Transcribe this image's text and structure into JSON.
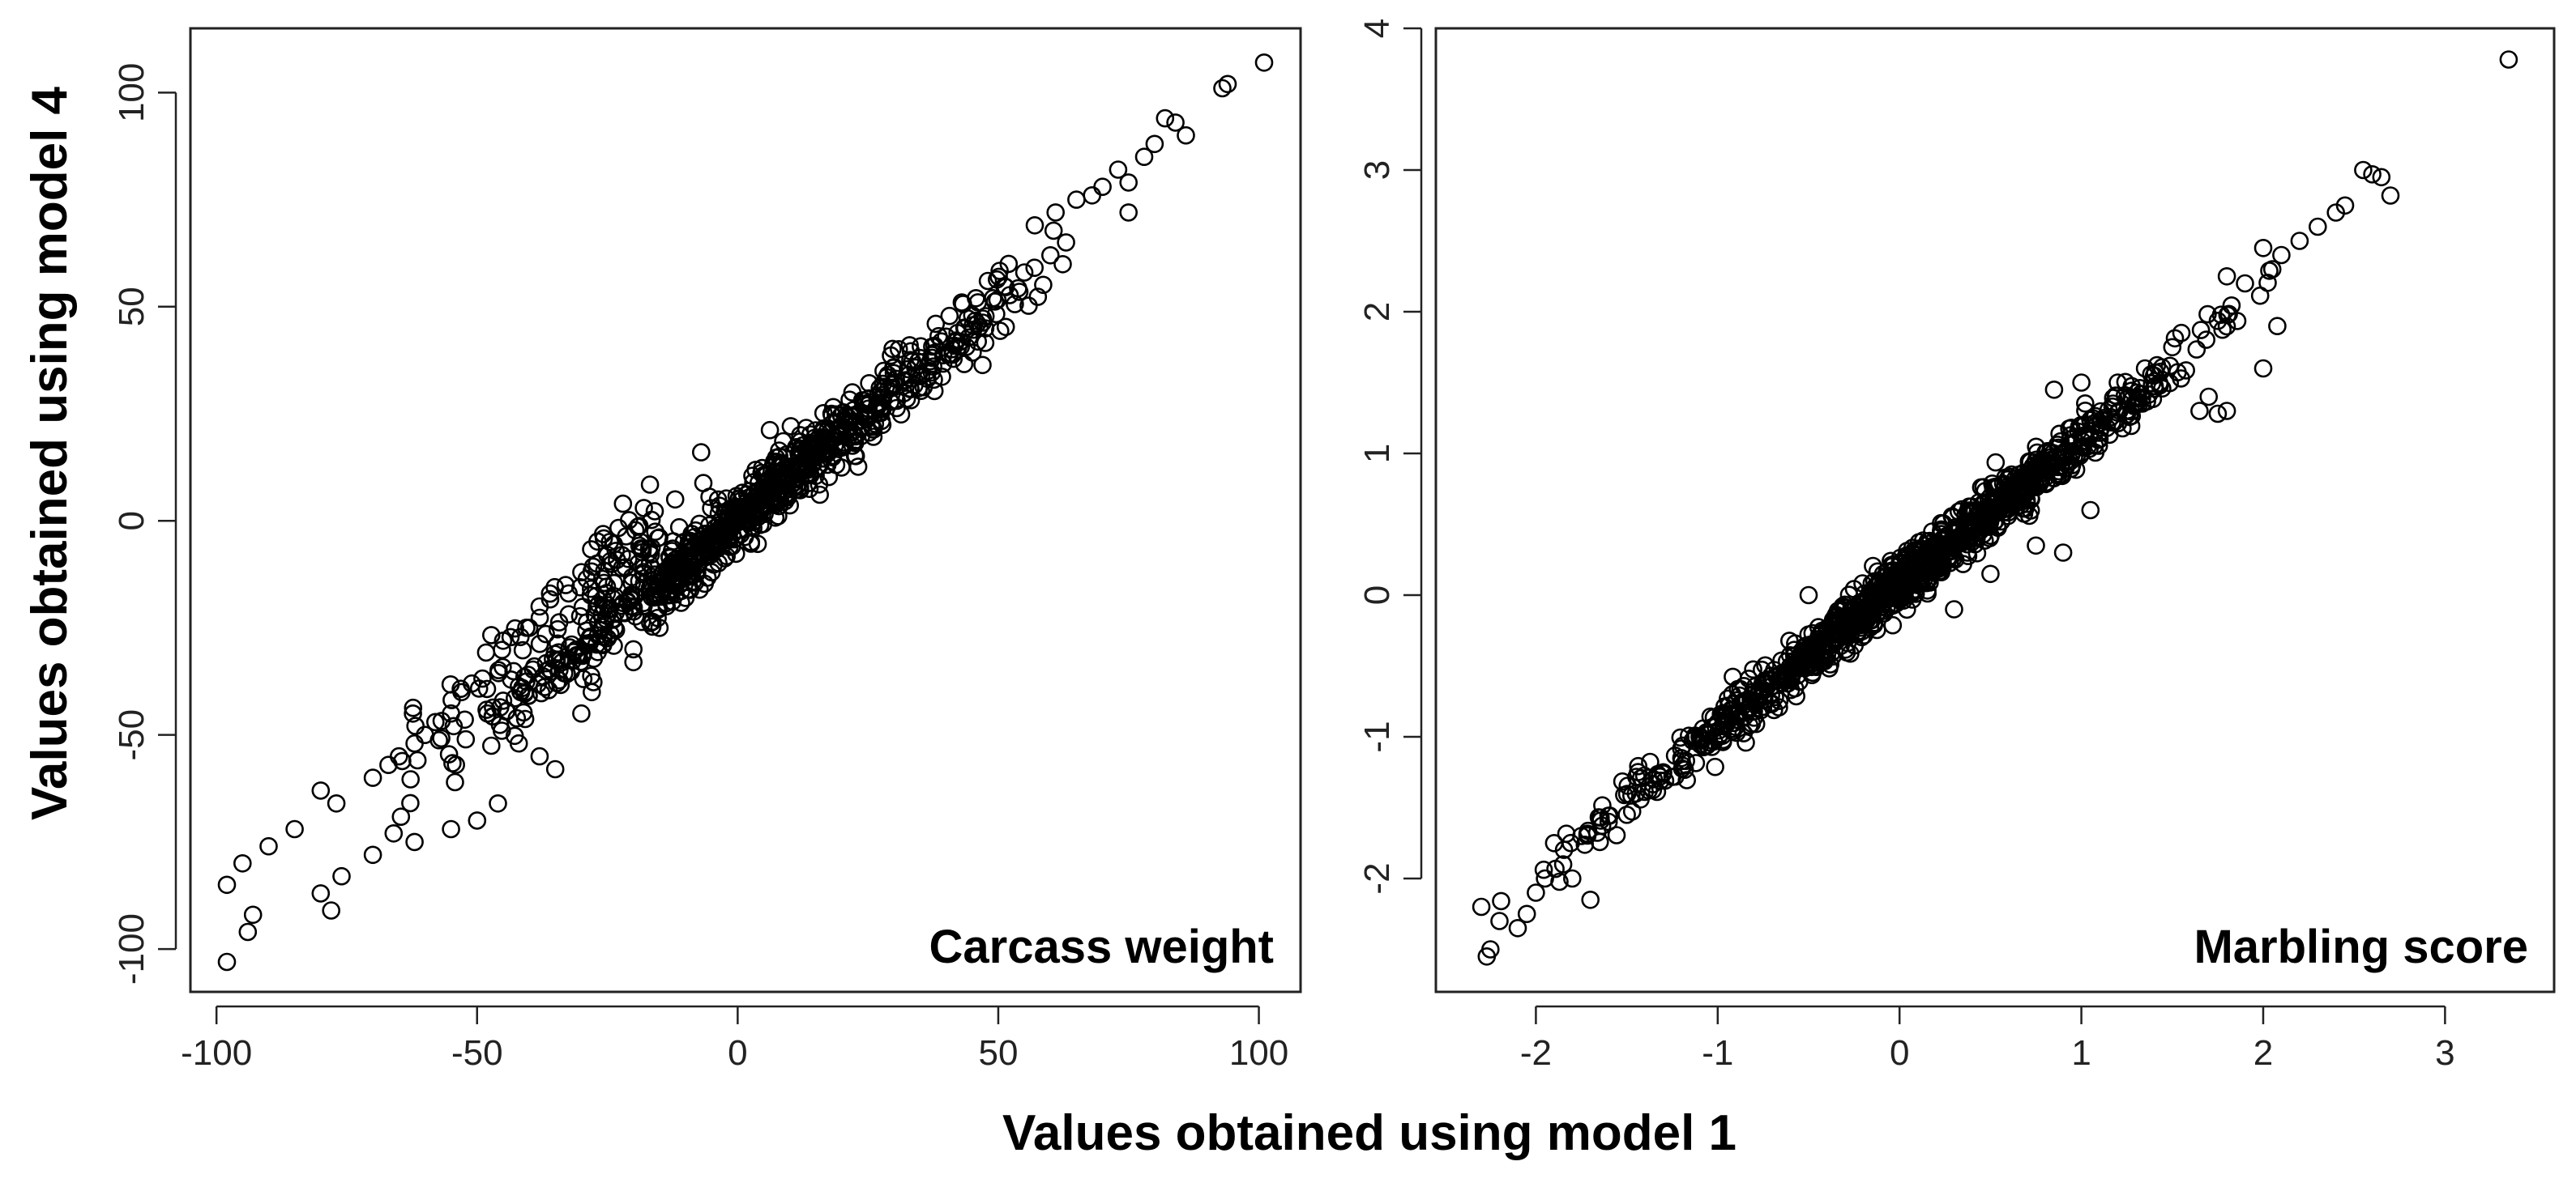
{
  "figure": {
    "shared_xlabel": "Values obtained using model 1",
    "shared_ylabel": "Values obtained using model 4"
  },
  "chart_data": [
    {
      "type": "scatter",
      "title": "Carcass weight",
      "xlabel": "Values obtained using model 1",
      "ylabel": "Values obtained using model 4",
      "xlim": [
        -105,
        108
      ],
      "ylim": [
        -110,
        115
      ],
      "xticks": [
        -100,
        -50,
        0,
        50,
        100
      ],
      "xtick_labels": [
        "-100",
        "-50",
        "0",
        "50",
        "100"
      ],
      "yticks": [
        -100,
        -50,
        0,
        50,
        100
      ],
      "ytick_labels": [
        "-100",
        "-50",
        "0",
        "50",
        "100"
      ],
      "grid": false,
      "n_points_shown": 900,
      "trend": {
        "slope": 1.0,
        "intercept": 0.5,
        "residual_sd": 3.8
      },
      "secondary_band": {
        "x_range": [
          -75,
          -15
        ],
        "offset": 12
      },
      "points": [
        [
          101,
          107
        ],
        [
          94,
          102
        ],
        [
          93,
          101
        ],
        [
          86,
          90
        ],
        [
          82,
          94
        ],
        [
          84,
          93
        ],
        [
          -98,
          -103
        ],
        [
          -93,
          -92
        ],
        [
          -94,
          -96
        ],
        [
          -80,
          -87
        ],
        [
          -78,
          -91
        ],
        [
          -76,
          -83
        ],
        [
          -98,
          -85
        ],
        [
          -95,
          -80
        ],
        [
          -90,
          -76
        ],
        [
          -85,
          -72
        ],
        [
          -80,
          -63
        ],
        [
          -77,
          -66
        ],
        [
          -7,
          16
        ],
        [
          -2,
          -2
        ],
        [
          -18,
          3
        ],
        [
          -12,
          5
        ],
        [
          -22,
          4
        ],
        [
          -25,
          -8
        ],
        [
          -45,
          -42
        ],
        [
          -48,
          -45
        ],
        [
          -51,
          -38
        ],
        [
          -45,
          -28
        ],
        [
          -40,
          -25
        ],
        [
          -38,
          -20
        ],
        [
          -36,
          -17
        ],
        [
          -33,
          -15
        ],
        [
          -30,
          -12
        ],
        [
          -27,
          -10
        ],
        [
          -55,
          -45
        ],
        [
          -60,
          -50
        ],
        [
          -65,
          -55
        ],
        [
          -70,
          -60
        ],
        [
          -53,
          -40
        ],
        [
          -58,
          -47
        ],
        [
          -62,
          -52
        ],
        [
          -67,
          -57
        ],
        [
          -46,
          -66
        ],
        [
          -35,
          -58
        ],
        [
          -38,
          -55
        ],
        [
          -42,
          -52
        ],
        [
          -50,
          -70
        ],
        [
          -55,
          -72
        ],
        [
          -62,
          -75
        ],
        [
          -70,
          -78
        ],
        [
          -66,
          -73
        ],
        [
          -28,
          -40
        ],
        [
          -20,
          -33
        ],
        [
          -30,
          -45
        ],
        [
          57,
          69
        ],
        [
          61,
          72
        ],
        [
          65,
          75
        ],
        [
          70,
          78
        ],
        [
          73,
          82
        ],
        [
          78,
          85
        ],
        [
          80,
          88
        ],
        [
          75,
          79
        ],
        [
          68,
          76
        ],
        [
          63,
          65
        ],
        [
          55,
          58
        ],
        [
          60,
          62
        ],
        [
          45,
          48
        ],
        [
          40,
          43
        ],
        [
          35,
          38
        ],
        [
          30,
          32
        ],
        [
          25,
          27
        ],
        [
          20,
          22
        ],
        [
          15,
          17
        ],
        [
          10,
          12
        ],
        [
          5,
          7
        ],
        [
          0,
          2
        ],
        [
          -5,
          -3
        ],
        [
          -10,
          -8
        ],
        [
          3,
          9
        ],
        [
          8,
          15
        ],
        [
          12,
          20
        ],
        [
          18,
          25
        ],
        [
          22,
          30
        ],
        [
          28,
          35
        ],
        [
          33,
          41
        ],
        [
          38,
          46
        ],
        [
          43,
          51
        ],
        [
          48,
          56
        ],
        [
          52,
          60
        ],
        [
          75,
          72
        ],
        [
          -15,
          -25
        ],
        [
          -20,
          -30
        ],
        [
          -10,
          -18
        ],
        [
          -5,
          -12
        ]
      ]
    },
    {
      "type": "scatter",
      "title": "Marbling score",
      "xlabel": "Values obtained using model 1",
      "ylabel": "Values obtained using model 4",
      "xlim": [
        -2.55,
        3.6
      ],
      "ylim": [
        -2.8,
        4.0
      ],
      "xticks": [
        -2,
        -1,
        0,
        1,
        2,
        3
      ],
      "xtick_labels": [
        "-2",
        "-1",
        "0",
        "1",
        "2",
        "3"
      ],
      "yticks": [
        -2,
        -1,
        0,
        1,
        2,
        3,
        4
      ],
      "ytick_labels": [
        "-2",
        "-1",
        "0",
        "1",
        "2",
        "3",
        "4"
      ],
      "grid": false,
      "n_points_shown": 1100,
      "trend": {
        "slope": 1.02,
        "intercept": 0.08,
        "residual_sd": 0.09
      },
      "points": [
        [
          3.35,
          3.78
        ],
        [
          2.7,
          2.82
        ],
        [
          2.65,
          2.95
        ],
        [
          2.6,
          2.97
        ],
        [
          2.55,
          3.0
        ],
        [
          2.45,
          2.75
        ],
        [
          2.4,
          2.7
        ],
        [
          2.3,
          2.6
        ],
        [
          2.2,
          2.5
        ],
        [
          2.1,
          2.4
        ],
        [
          2.0,
          1.6
        ],
        [
          1.8,
          1.3
        ],
        [
          1.75,
          1.28
        ],
        [
          1.65,
          1.3
        ],
        [
          1.7,
          1.4
        ],
        [
          2.0,
          2.45
        ],
        [
          2.05,
          2.3
        ],
        [
          1.9,
          2.2
        ],
        [
          1.8,
          2.25
        ],
        [
          1.55,
          1.85
        ],
        [
          1.5,
          1.75
        ],
        [
          1.35,
          1.6
        ],
        [
          1.2,
          1.5
        ],
        [
          1.0,
          1.2
        ],
        [
          0.9,
          1.0
        ],
        [
          0.8,
          0.9
        ],
        [
          -0.5,
          0.0
        ],
        [
          -2.3,
          -2.2
        ],
        [
          -2.25,
          -2.5
        ],
        [
          -2.27,
          -2.55
        ],
        [
          -2.2,
          -2.3
        ],
        [
          -2.1,
          -2.35
        ],
        [
          -2.05,
          -2.25
        ],
        [
          -2.0,
          -2.1
        ],
        [
          -1.95,
          -2.0
        ],
        [
          -1.9,
          -1.75
        ],
        [
          -1.85,
          -1.9
        ],
        [
          -1.8,
          -2.0
        ],
        [
          -1.7,
          -2.15
        ],
        [
          -1.75,
          -1.7
        ],
        [
          -1.6,
          -1.6
        ],
        [
          -1.5,
          -1.55
        ],
        [
          -1.45,
          -1.4
        ],
        [
          -1.3,
          -1.25
        ],
        [
          -1.2,
          -1.15
        ],
        [
          -1.1,
          -1.0
        ],
        [
          -1.0,
          -0.9
        ],
        [
          -0.9,
          -0.85
        ],
        [
          -0.8,
          -0.7
        ],
        [
          -0.7,
          -0.6
        ],
        [
          -0.6,
          -0.5
        ],
        [
          -0.4,
          -0.3
        ],
        [
          -0.3,
          -0.2
        ],
        [
          -0.2,
          -0.1
        ],
        [
          -0.1,
          0.0
        ],
        [
          0.0,
          0.1
        ],
        [
          0.1,
          0.2
        ],
        [
          0.2,
          0.3
        ],
        [
          0.3,
          0.4
        ],
        [
          0.4,
          0.5
        ],
        [
          0.5,
          0.6
        ],
        [
          0.6,
          0.7
        ],
        [
          0.7,
          0.8
        ],
        [
          1.1,
          1.1
        ],
        [
          0.9,
          0.3
        ],
        [
          0.75,
          0.35
        ],
        [
          0.5,
          0.15
        ],
        [
          0.3,
          -0.1
        ],
        [
          1.05,
          0.6
        ],
        [
          1.25,
          1.3
        ],
        [
          1.4,
          1.55
        ],
        [
          0.85,
          1.45
        ],
        [
          1.0,
          1.5
        ]
      ]
    }
  ]
}
